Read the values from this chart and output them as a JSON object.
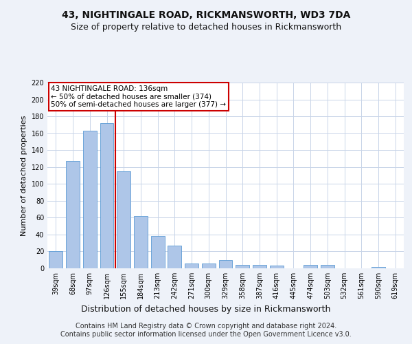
{
  "title1": "43, NIGHTINGALE ROAD, RICKMANSWORTH, WD3 7DA",
  "title2": "Size of property relative to detached houses in Rickmansworth",
  "xlabel": "Distribution of detached houses by size in Rickmansworth",
  "ylabel": "Number of detached properties",
  "categories": [
    "39sqm",
    "68sqm",
    "97sqm",
    "126sqm",
    "155sqm",
    "184sqm",
    "213sqm",
    "242sqm",
    "271sqm",
    "300sqm",
    "329sqm",
    "358sqm",
    "387sqm",
    "416sqm",
    "445sqm",
    "474sqm",
    "503sqm",
    "532sqm",
    "561sqm",
    "590sqm",
    "619sqm"
  ],
  "values": [
    20,
    127,
    163,
    172,
    115,
    62,
    38,
    27,
    6,
    6,
    10,
    4,
    4,
    3,
    0,
    4,
    4,
    0,
    0,
    2,
    0
  ],
  "bar_color": "#aec6e8",
  "bar_edge_color": "#5b9bd5",
  "bar_width": 0.8,
  "ylim": [
    0,
    220
  ],
  "yticks": [
    0,
    20,
    40,
    60,
    80,
    100,
    120,
    140,
    160,
    180,
    200,
    220
  ],
  "vline_color": "#cc0000",
  "annotation_text": "43 NIGHTINGALE ROAD: 136sqm\n← 50% of detached houses are smaller (374)\n50% of semi-detached houses are larger (377) →",
  "annotation_box_color": "#ffffff",
  "annotation_box_edge": "#cc0000",
  "footer1": "Contains HM Land Registry data © Crown copyright and database right 2024.",
  "footer2": "Contains public sector information licensed under the Open Government Licence v3.0.",
  "background_color": "#eef2f9",
  "plot_background": "#ffffff",
  "grid_color": "#c8d4e8",
  "title1_fontsize": 10,
  "title2_fontsize": 9,
  "xlabel_fontsize": 9,
  "ylabel_fontsize": 8,
  "tick_fontsize": 7,
  "footer_fontsize": 7,
  "annotation_fontsize": 7.5
}
